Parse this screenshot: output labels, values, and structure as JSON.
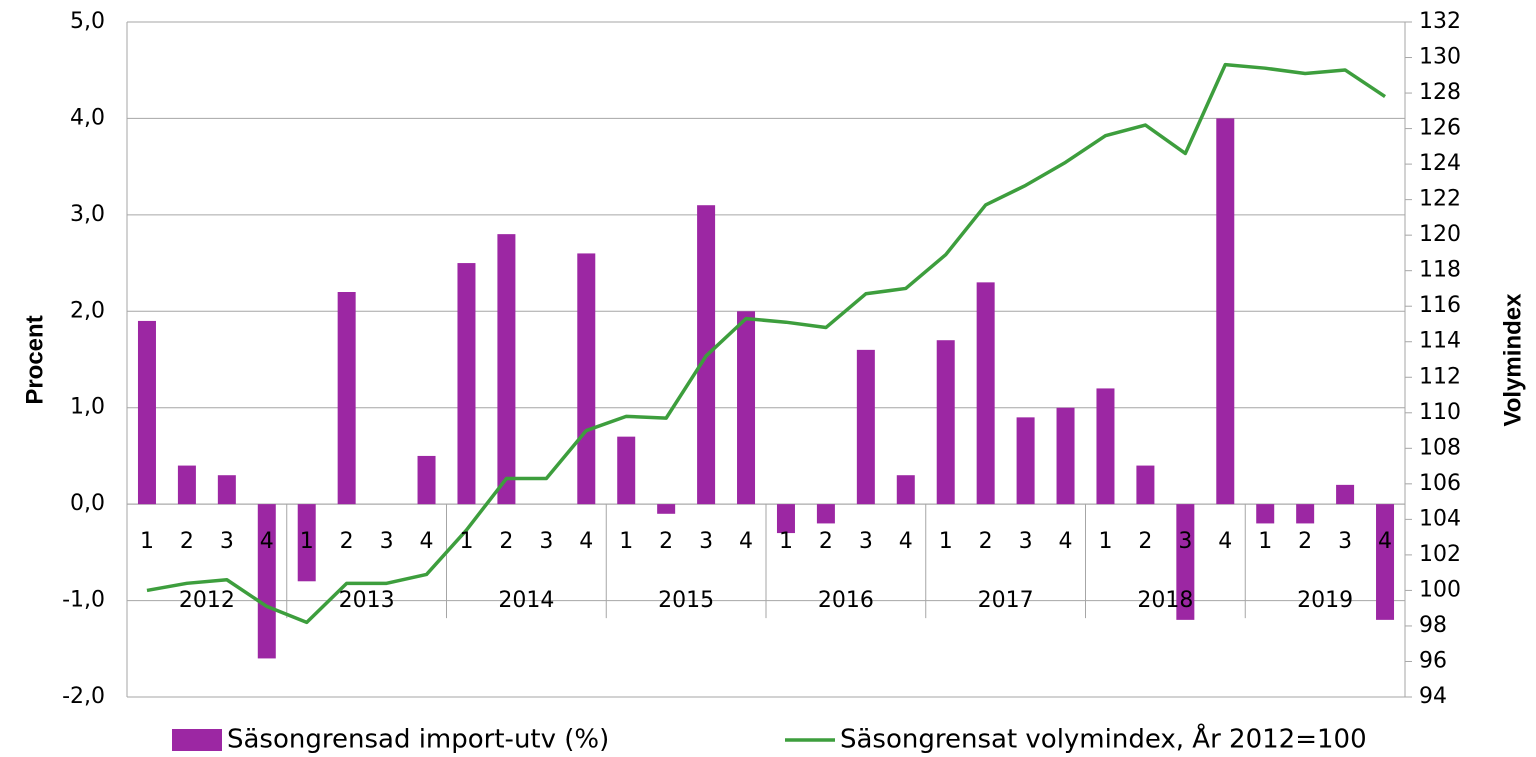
{
  "chart_data": {
    "type": "bar_line",
    "categories": [
      "1",
      "2",
      "3",
      "4",
      "1",
      "2",
      "3",
      "4",
      "1",
      "2",
      "3",
      "4",
      "1",
      "2",
      "3",
      "4",
      "1",
      "2",
      "3",
      "4",
      "1",
      "2",
      "3",
      "4",
      "1",
      "2",
      "3",
      "4",
      "1",
      "2",
      "3",
      "4"
    ],
    "years": [
      "2012",
      "2013",
      "2014",
      "2015",
      "2016",
      "2017",
      "2018",
      "2019"
    ],
    "ylabel": "Procent",
    "y2label": "Volymindex",
    "ylim": [
      -2,
      5
    ],
    "yticks": [
      {
        "value": -2,
        "label": "-2,0"
      },
      {
        "value": -1,
        "label": "-1,0"
      },
      {
        "value": 0,
        "label": "0,0"
      },
      {
        "value": 1,
        "label": "1,0"
      },
      {
        "value": 2,
        "label": "2,0"
      },
      {
        "value": 3,
        "label": "3,0"
      },
      {
        "value": 4,
        "label": "4,0"
      },
      {
        "value": 5,
        "label": "5,0"
      }
    ],
    "y2lim": [
      94,
      132
    ],
    "y2ticks": [
      94,
      96,
      98,
      100,
      102,
      104,
      106,
      108,
      110,
      112,
      114,
      116,
      118,
      120,
      122,
      124,
      126,
      128,
      130,
      132
    ],
    "grid": true,
    "legend": "bottom",
    "series": [
      {
        "name": "Säsongrensad import-utv (%)",
        "type": "bar",
        "color": "#9c27a3",
        "values": [
          1.9,
          0.4,
          0.3,
          -1.6,
          -0.8,
          2.2,
          0.0,
          0.5,
          2.5,
          2.8,
          0.0,
          2.6,
          0.7,
          -0.1,
          3.1,
          2.0,
          -0.3,
          -0.2,
          1.6,
          0.3,
          1.7,
          2.3,
          0.9,
          1.0,
          1.2,
          0.4,
          -1.2,
          4.0,
          -0.2,
          -0.2,
          0.2,
          -1.2
        ]
      },
      {
        "name": "Säsongrensat volymindex, År 2012=100",
        "type": "line",
        "axis": "y2",
        "color": "#3d9e3d",
        "values": [
          100.0,
          100.4,
          100.6,
          99.1,
          98.2,
          100.4,
          100.4,
          100.9,
          103.4,
          106.3,
          106.3,
          109.0,
          109.8,
          109.7,
          113.2,
          115.3,
          115.1,
          114.8,
          116.7,
          117.0,
          118.9,
          121.7,
          122.8,
          124.1,
          125.6,
          126.2,
          124.6,
          129.6,
          129.4,
          129.1,
          129.3,
          127.8
        ]
      }
    ]
  }
}
